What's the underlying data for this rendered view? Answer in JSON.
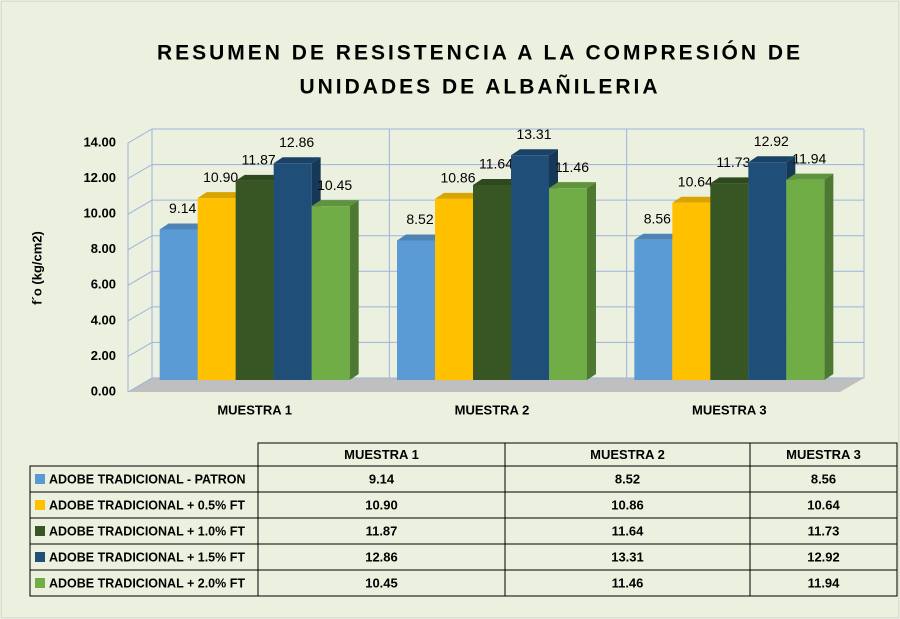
{
  "chart_data": {
    "type": "bar3d",
    "title_lines": [
      "RESUMEN DE RESISTENCIA A LA COMPRESIÓN DE",
      "UNIDADES DE ALBAÑILERIA"
    ],
    "y_label": "f´o (kg/cm2)",
    "categories": [
      "MUESTRA 1",
      "MUESTRA 2",
      "MUESTRA 3"
    ],
    "series": [
      {
        "name": "ADOBE TRADICIONAL - PATRON",
        "color": "#5b9bd5",
        "values": [
          9.14,
          8.52,
          8.56
        ],
        "value_labels": [
          "9.14",
          "8.52",
          "8.56"
        ]
      },
      {
        "name": "ADOBE TRADICIONAL + 0.5% FT",
        "color": "#ffc000",
        "values": [
          10.9,
          10.86,
          10.64
        ],
        "value_labels": [
          "10.90",
          "10.86",
          "10.64"
        ]
      },
      {
        "name": "ADOBE TRADICIONAL + 1.0% FT",
        "color": "#375623",
        "values": [
          11.87,
          11.64,
          11.73
        ],
        "value_labels": [
          "11.87",
          "11.64",
          "11.73"
        ]
      },
      {
        "name": "ADOBE TRADICIONAL + 1.5% FT",
        "color": "#1f4e79",
        "values": [
          12.86,
          13.31,
          12.92
        ],
        "value_labels": [
          "12.86",
          "13.31",
          "12.92"
        ]
      },
      {
        "name": "ADOBE TRADICIONAL + 2.0% FT",
        "color": "#70ad47",
        "values": [
          10.45,
          11.46,
          11.94
        ],
        "value_labels": [
          "10.45",
          "11.46",
          "11.94"
        ]
      }
    ],
    "ylim": [
      0,
      14
    ],
    "yticks": [
      {
        "value": 0,
        "label": "0.00"
      },
      {
        "value": 2,
        "label": "2.00"
      },
      {
        "value": 4,
        "label": "4.00"
      },
      {
        "value": 6,
        "label": "6.00"
      },
      {
        "value": 8,
        "label": "8.00"
      },
      {
        "value": 10,
        "label": "10.00"
      },
      {
        "value": 12,
        "label": "12.00"
      },
      {
        "value": 14,
        "label": "14.00"
      }
    ],
    "grid": true
  }
}
